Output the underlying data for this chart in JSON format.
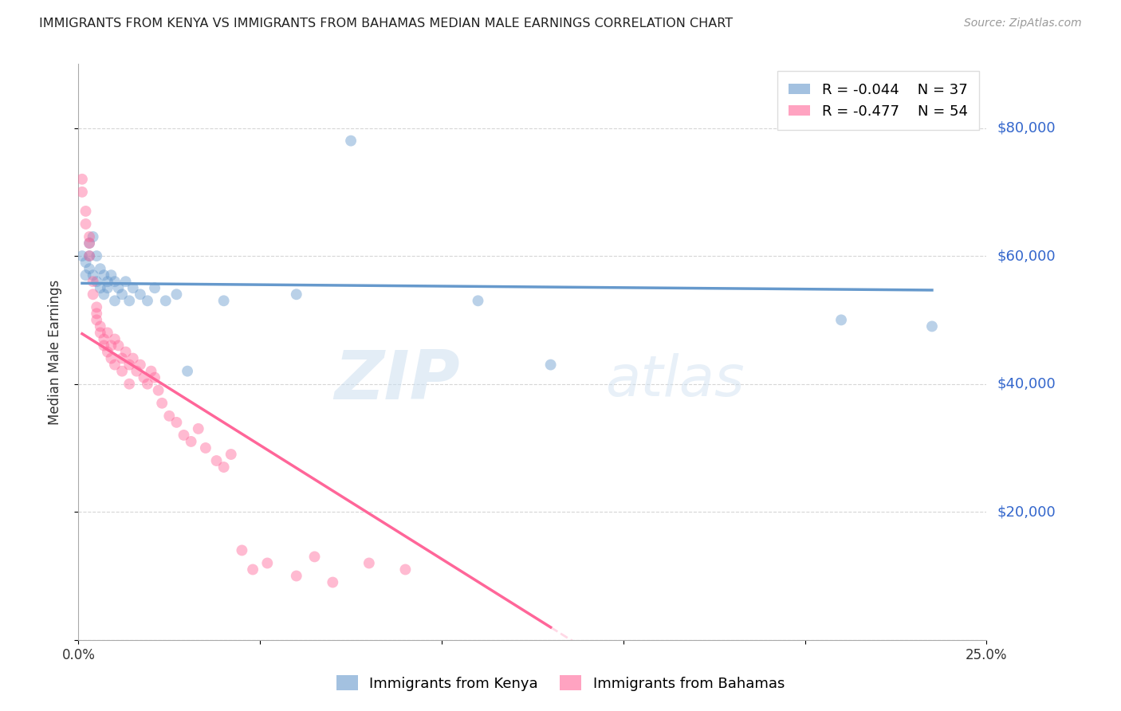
{
  "title": "IMMIGRANTS FROM KENYA VS IMMIGRANTS FROM BAHAMAS MEDIAN MALE EARNINGS CORRELATION CHART",
  "source": "Source: ZipAtlas.com",
  "ylabel_text": "Median Male Earnings",
  "xlim": [
    0.0,
    0.25
  ],
  "ylim": [
    0,
    90000
  ],
  "xtick_values": [
    0.0,
    0.05,
    0.1,
    0.15,
    0.2,
    0.25
  ],
  "ytick_values": [
    0,
    20000,
    40000,
    60000,
    80000
  ],
  "grid_color": "#cccccc",
  "background_color": "#ffffff",
  "kenya_color": "#6699cc",
  "bahamas_color": "#ff6699",
  "kenya_R": -0.044,
  "kenya_N": 37,
  "bahamas_R": -0.477,
  "bahamas_N": 54,
  "kenya_scatter_x": [
    0.001,
    0.002,
    0.002,
    0.003,
    0.003,
    0.003,
    0.004,
    0.004,
    0.005,
    0.005,
    0.006,
    0.006,
    0.007,
    0.007,
    0.008,
    0.008,
    0.009,
    0.01,
    0.01,
    0.011,
    0.012,
    0.013,
    0.014,
    0.015,
    0.017,
    0.019,
    0.021,
    0.024,
    0.027,
    0.03,
    0.04,
    0.06,
    0.075,
    0.11,
    0.13,
    0.21,
    0.235
  ],
  "kenya_scatter_y": [
    60000,
    59000,
    57000,
    62000,
    60000,
    58000,
    63000,
    57000,
    60000,
    56000,
    58000,
    55000,
    57000,
    54000,
    56000,
    55000,
    57000,
    56000,
    53000,
    55000,
    54000,
    56000,
    53000,
    55000,
    54000,
    53000,
    55000,
    53000,
    54000,
    42000,
    53000,
    54000,
    78000,
    53000,
    43000,
    50000,
    49000
  ],
  "bahamas_scatter_x": [
    0.001,
    0.001,
    0.002,
    0.002,
    0.003,
    0.003,
    0.003,
    0.004,
    0.004,
    0.005,
    0.005,
    0.005,
    0.006,
    0.006,
    0.007,
    0.007,
    0.008,
    0.008,
    0.009,
    0.009,
    0.01,
    0.01,
    0.011,
    0.012,
    0.012,
    0.013,
    0.014,
    0.014,
    0.015,
    0.016,
    0.017,
    0.018,
    0.019,
    0.02,
    0.021,
    0.022,
    0.023,
    0.025,
    0.027,
    0.029,
    0.031,
    0.033,
    0.035,
    0.038,
    0.04,
    0.042,
    0.045,
    0.048,
    0.052,
    0.06,
    0.065,
    0.07,
    0.08,
    0.09
  ],
  "bahamas_scatter_y": [
    72000,
    70000,
    67000,
    65000,
    63000,
    62000,
    60000,
    56000,
    54000,
    52000,
    51000,
    50000,
    49000,
    48000,
    47000,
    46000,
    48000,
    45000,
    46000,
    44000,
    47000,
    43000,
    46000,
    44000,
    42000,
    45000,
    43000,
    40000,
    44000,
    42000,
    43000,
    41000,
    40000,
    42000,
    41000,
    39000,
    37000,
    35000,
    34000,
    32000,
    31000,
    33000,
    30000,
    28000,
    27000,
    29000,
    14000,
    11000,
    12000,
    10000,
    13000,
    9000,
    12000,
    11000
  ],
  "watermark_zip": "ZIP",
  "watermark_atlas": "atlas",
  "marker_size": 100,
  "marker_alpha": 0.45
}
